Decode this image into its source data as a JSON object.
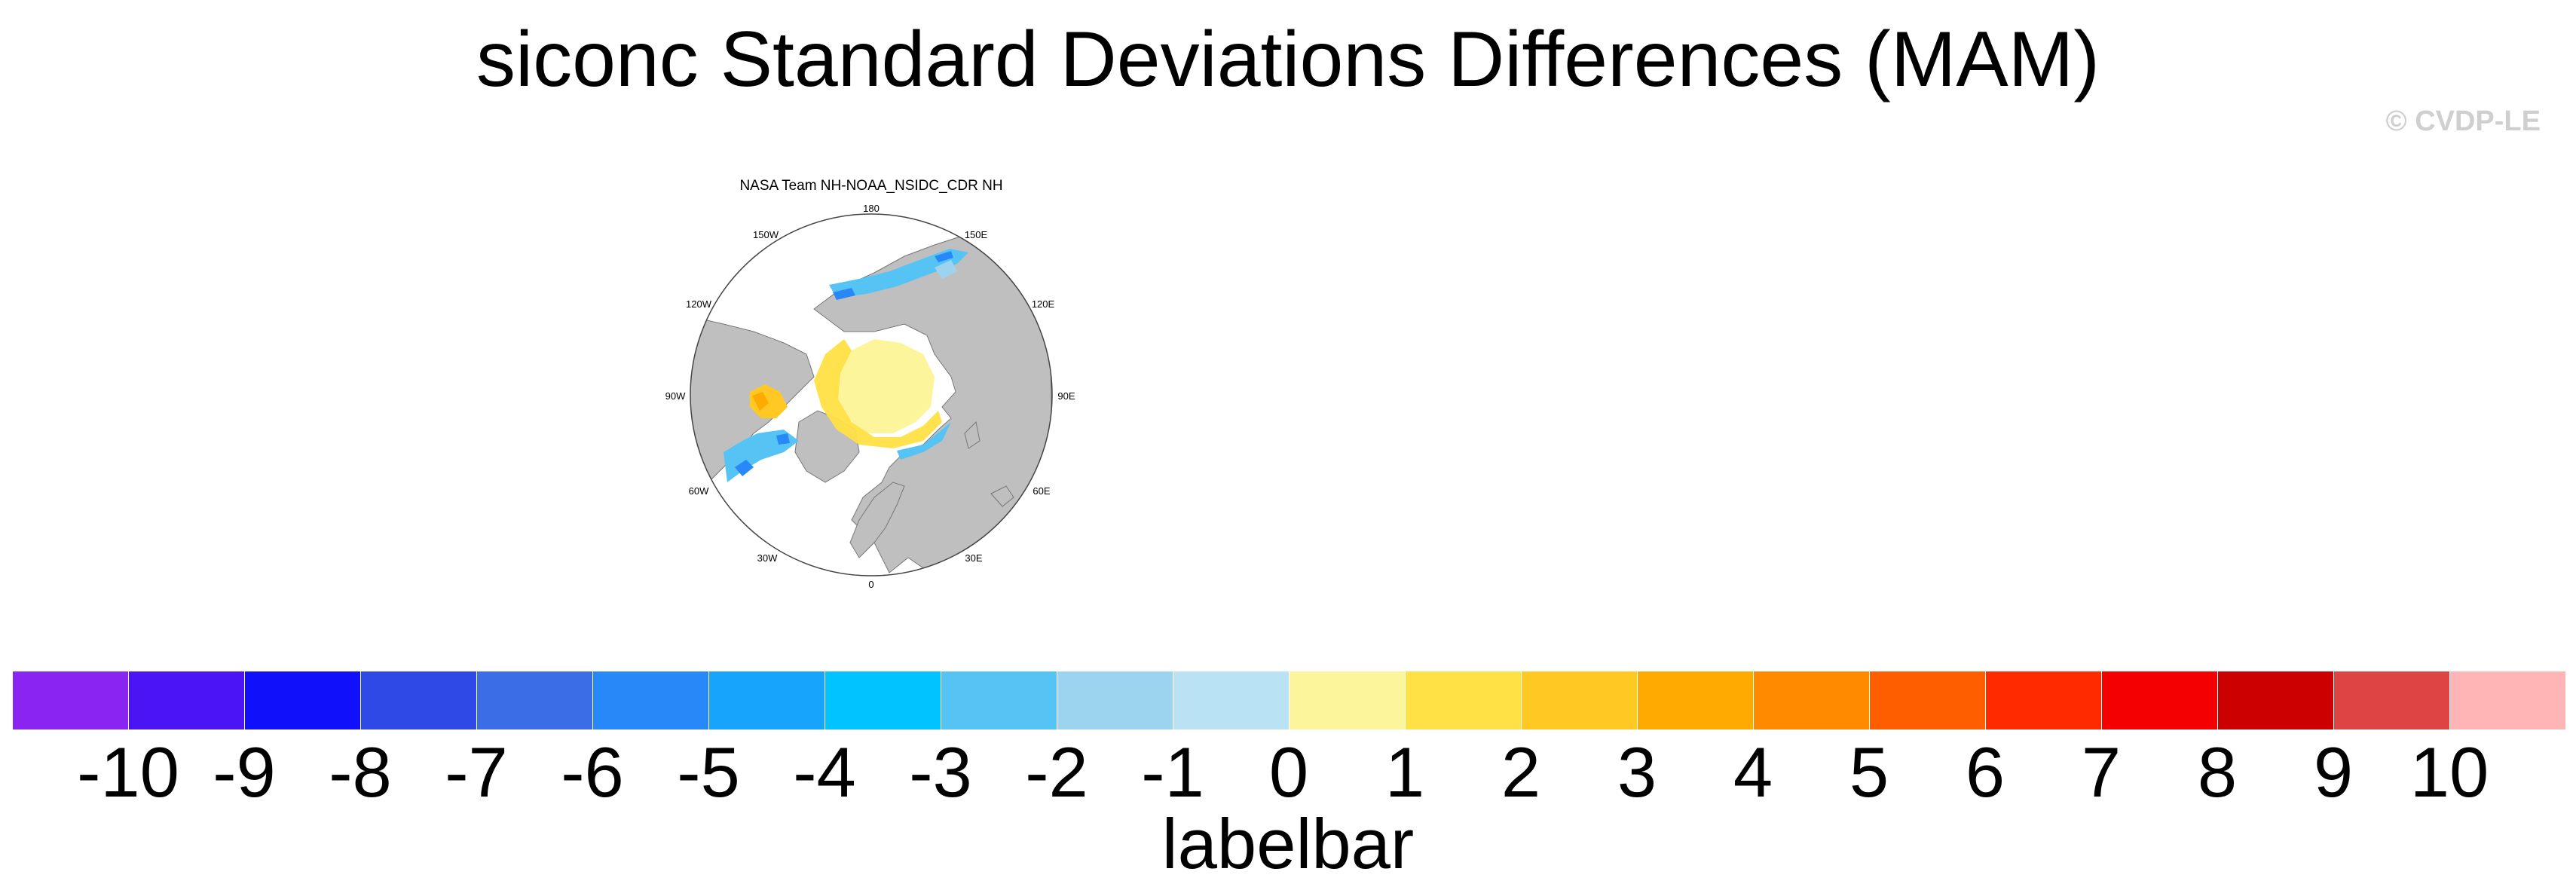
{
  "title": "siconc Standard Deviations Differences (MAM)",
  "copyright": "© CVDP-LE",
  "panel": {
    "title": "NASA Team NH-NOAA_NSIDC_CDR NH",
    "projection": "north polar stereographic",
    "longitude_labels": [
      "180",
      "150E",
      "120E",
      "90E",
      "60E",
      "30E",
      "0",
      "30W",
      "60W",
      "90W",
      "120W",
      "150W"
    ]
  },
  "colorbar": {
    "label": "labelbar",
    "ticks": [
      "-10",
      "-9",
      "-8",
      "-7",
      "-6",
      "-5",
      "-4",
      "-3",
      "-2",
      "-1",
      "0",
      "1",
      "2",
      "3",
      "4",
      "5",
      "6",
      "7",
      "8",
      "9",
      "10"
    ],
    "colors": [
      "#8a24f0",
      "#4a14f5",
      "#1010fa",
      "#2f49e6",
      "#3a6de6",
      "#2888f7",
      "#17a4fb",
      "#00c3ff",
      "#55c4f5",
      "#9cd4f0",
      "#b9e2f5",
      "#fdf59b",
      "#ffe045",
      "#ffc822",
      "#ffaa00",
      "#ff8a00",
      "#ff5e00",
      "#ff2a00",
      "#f50000",
      "#cc0000",
      "#dd4545",
      "#ffb5b5"
    ]
  },
  "colors": {
    "land": "#bfbfbf",
    "ocean_no_data": "#ffffff",
    "coastline": "#777777"
  }
}
